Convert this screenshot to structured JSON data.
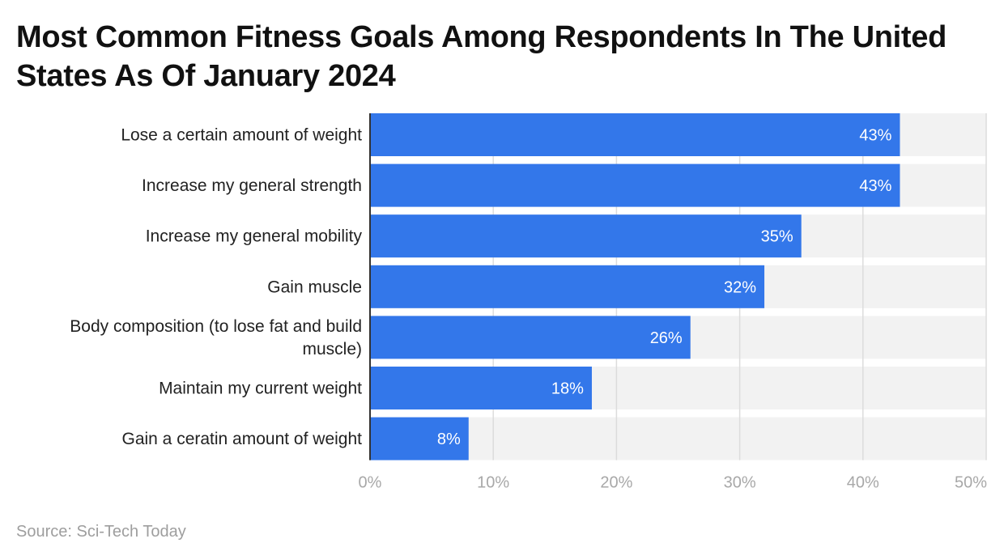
{
  "chart_data": {
    "type": "bar",
    "orientation": "horizontal",
    "title": "Most Common Fitness Goals Among Respondents In The United States As Of January 2024",
    "categories": [
      "Lose a certain amount of weight",
      "Increase my general strength",
      "Increase my general mobility",
      "Gain muscle",
      "Body composition (to lose fat and build muscle)",
      "Maintain my current weight",
      "Gain a ceratin amount of weight"
    ],
    "category_lines": [
      [
        "Lose a certain amount of weight"
      ],
      [
        "Increase my general strength"
      ],
      [
        "Increase my general mobility"
      ],
      [
        "Gain muscle"
      ],
      [
        "Body composition (to lose fat and build",
        "muscle)"
      ],
      [
        "Maintain my current weight"
      ],
      [
        "Gain a ceratin amount of weight"
      ]
    ],
    "values": [
      43,
      43,
      35,
      32,
      26,
      18,
      8
    ],
    "data_labels": [
      "43%",
      "43%",
      "35%",
      "32%",
      "26%",
      "18%",
      "8%"
    ],
    "xlim": [
      0,
      50
    ],
    "xticks": [
      0,
      10,
      20,
      30,
      40,
      50
    ],
    "xtick_labels": [
      "0%",
      "10%",
      "20%",
      "30%",
      "40%",
      "50%"
    ],
    "xlabel": "",
    "ylabel": "",
    "grid": true,
    "colors": {
      "bar": "#3377ea",
      "track": "#f2f2f2",
      "grid": "#dcdcdc",
      "axis": "#333333",
      "label": "#222222",
      "tick": "#a8a8a8",
      "data_label": "#ffffff"
    }
  },
  "source": "Source: Sci-Tech Today"
}
